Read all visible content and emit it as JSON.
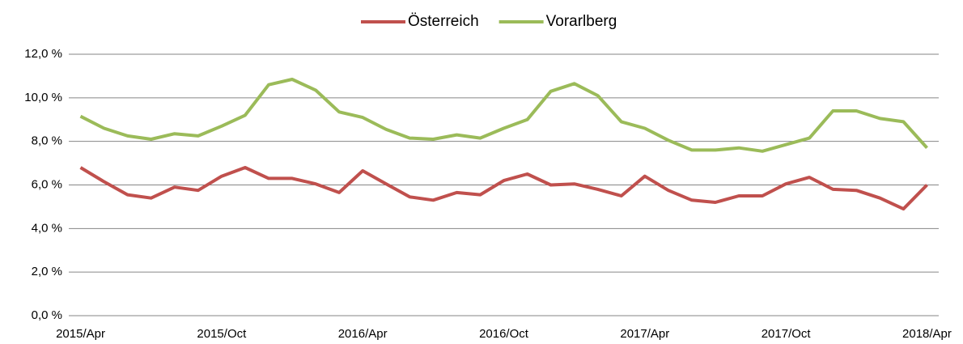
{
  "chart_data": {
    "type": "line",
    "categories": [
      "2015/Apr",
      null,
      null,
      null,
      null,
      null,
      "2015/Oct",
      null,
      null,
      null,
      null,
      null,
      "2016/Apr",
      null,
      null,
      null,
      null,
      null,
      "2016/Oct",
      null,
      null,
      null,
      null,
      null,
      "2017/Apr",
      null,
      null,
      null,
      null,
      null,
      "2017/Oct",
      null,
      null,
      null,
      null,
      null,
      "2018/Apr"
    ],
    "series": [
      {
        "name": "Österreich",
        "color": "#c0504d",
        "values": [
          6.8,
          6.15,
          5.55,
          5.4,
          5.9,
          5.75,
          6.4,
          6.8,
          6.3,
          6.3,
          6.05,
          5.65,
          6.65,
          6.05,
          5.45,
          5.3,
          5.65,
          5.55,
          6.2,
          6.5,
          6.0,
          6.05,
          5.8,
          5.5,
          6.4,
          5.75,
          5.3,
          5.2,
          5.5,
          5.5,
          6.05,
          6.35,
          5.8,
          5.75,
          5.4,
          4.9,
          6.0
        ]
      },
      {
        "name": "Vorarlberg",
        "color": "#9bbb59",
        "values": [
          9.15,
          8.6,
          8.25,
          8.1,
          8.35,
          8.25,
          8.7,
          9.2,
          10.6,
          10.85,
          10.35,
          9.35,
          9.1,
          8.55,
          8.15,
          8.1,
          8.3,
          8.15,
          8.6,
          9.0,
          10.3,
          10.65,
          10.1,
          8.9,
          8.6,
          8.05,
          7.6,
          7.6,
          7.7,
          7.55,
          7.85,
          8.15,
          9.4,
          9.4,
          9.05,
          8.9,
          7.7
        ]
      }
    ],
    "ylim": [
      0,
      12
    ],
    "yticks": [
      {
        "value": 0,
        "label": "0,0 %"
      },
      {
        "value": 2,
        "label": "2,0 %"
      },
      {
        "value": 4,
        "label": "4,0 %"
      },
      {
        "value": 6,
        "label": "6,0 %"
      },
      {
        "value": 8,
        "label": "8,0 %"
      },
      {
        "value": 10,
        "label": "10,0 %"
      },
      {
        "value": 12,
        "label": "12,0 %"
      }
    ],
    "grid": true,
    "legend": "top"
  }
}
